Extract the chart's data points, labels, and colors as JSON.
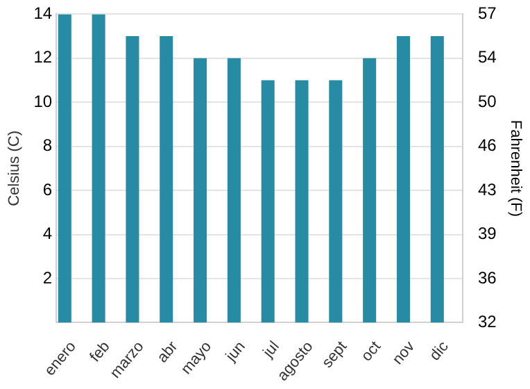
{
  "chart_data": {
    "type": "bar",
    "categories": [
      "enero",
      "feb",
      "marzo",
      "abr",
      "mayo",
      "jun",
      "jul",
      "agosto",
      "sept",
      "oct",
      "nov",
      "dic"
    ],
    "values": [
      14,
      14,
      13,
      13,
      12,
      12,
      11,
      11,
      11,
      12,
      13,
      13
    ],
    "color": "#268ba3",
    "ylabel": "Celsius (C)",
    "y2label": "Fahrenheit (F)",
    "ylim": [
      0,
      14
    ],
    "yticks": [
      2,
      4,
      6,
      8,
      10,
      12,
      14
    ],
    "y2lim": [
      32,
      57.2
    ],
    "y2ticks": [
      32,
      {
        "value": 35.6,
        "label": "36"
      },
      {
        "value": 39.2,
        "label": "39"
      },
      {
        "value": 42.8,
        "label": "43"
      },
      {
        "value": 46.4,
        "label": "46"
      },
      {
        "value": 50,
        "label": "50"
      },
      {
        "value": 53.6,
        "label": "54"
      },
      {
        "value": 57.2,
        "label": "57"
      }
    ],
    "grid": "y",
    "legend": false
  }
}
